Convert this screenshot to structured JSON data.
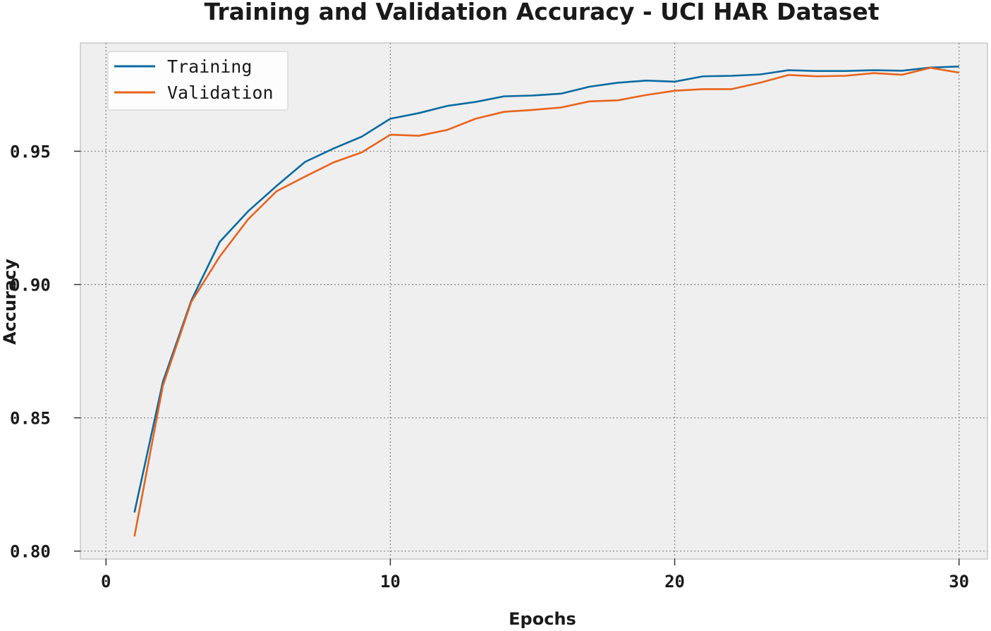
{
  "chart_data": {
    "type": "line",
    "title": "Training and Validation Accuracy - UCI HAR Dataset",
    "xlabel": "Epochs",
    "ylabel": "Accuracy",
    "xlim": [
      -0.9,
      31
    ],
    "ylim": [
      0.797,
      0.9906
    ],
    "xticks": [
      0,
      10,
      20,
      30
    ],
    "xtick_labels": [
      "0",
      "10",
      "20",
      "30"
    ],
    "yticks": [
      0.8,
      0.85,
      0.9,
      0.95
    ],
    "ytick_labels": [
      "0.80",
      "0.85",
      "0.90",
      "0.95"
    ],
    "grid": true,
    "legend_position": "top-left",
    "x": [
      1,
      2,
      3,
      4,
      5,
      6,
      7,
      8,
      9,
      10,
      11,
      12,
      13,
      14,
      15,
      16,
      17,
      18,
      19,
      20,
      21,
      22,
      23,
      24,
      25,
      26,
      27,
      28,
      29,
      30
    ],
    "series": [
      {
        "name": "Training",
        "color": "#0a6aa1",
        "values": [
          0.8145,
          0.8635,
          0.894,
          0.916,
          0.9275,
          0.937,
          0.946,
          0.951,
          0.9555,
          0.9622,
          0.9643,
          0.967,
          0.9685,
          0.9706,
          0.9709,
          0.9716,
          0.9742,
          0.9757,
          0.9765,
          0.9761,
          0.9781,
          0.9783,
          0.9788,
          0.9804,
          0.9801,
          0.9801,
          0.9804,
          0.9802,
          0.9814,
          0.9818
        ]
      },
      {
        "name": "Validation",
        "color": "#e8631c",
        "values": [
          0.8055,
          0.862,
          0.8935,
          0.9105,
          0.9245,
          0.935,
          0.9405,
          0.9458,
          0.9496,
          0.9562,
          0.9558,
          0.958,
          0.9622,
          0.9648,
          0.9655,
          0.9664,
          0.9687,
          0.9691,
          0.9711,
          0.9727,
          0.9733,
          0.9733,
          0.9757,
          0.9786,
          0.9781,
          0.9783,
          0.9793,
          0.9787,
          0.9813,
          0.9795
        ]
      }
    ]
  },
  "colors": {
    "plot_background": "#efefef",
    "grid": "#8a8a8a",
    "axes_frame": "#c8c8c8",
    "text": "#1a1a1a"
  }
}
